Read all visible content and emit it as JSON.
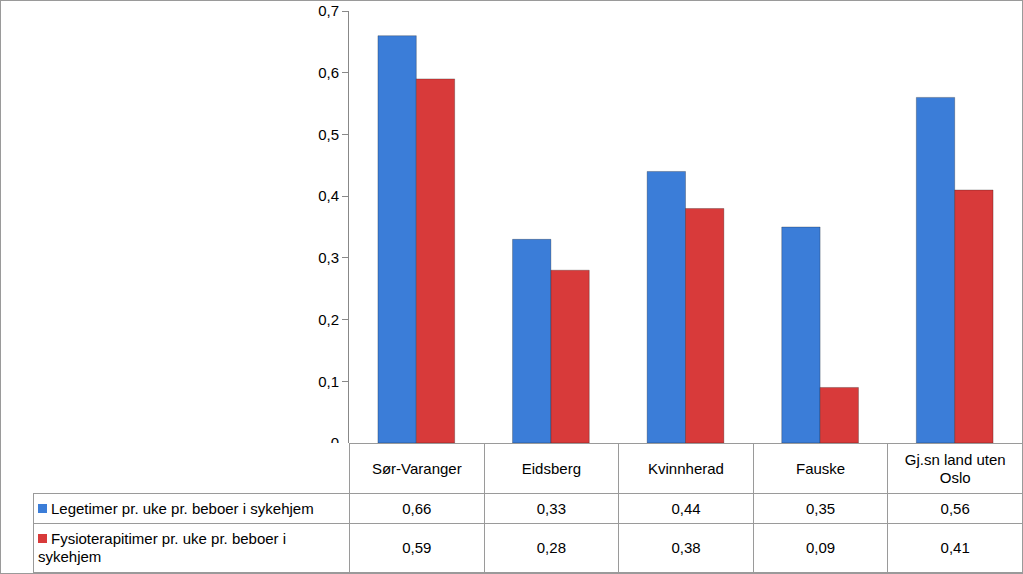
{
  "chart_data": {
    "type": "bar",
    "categories": [
      "Sør-Varanger",
      "Eidsberg",
      "Kvinnherad",
      "Fauske",
      "Gj.sn land uten Oslo"
    ],
    "series": [
      {
        "name": "Legetimer pr. uke pr. beboer i sykehjem",
        "color": "#3b7dd8",
        "values": [
          0.66,
          0.33,
          0.44,
          0.35,
          0.56
        ],
        "value_labels": [
          "0,66",
          "0,33",
          "0,44",
          "0,35",
          "0,56"
        ]
      },
      {
        "name": "Fysioterapitimer pr. uke pr. beboer i sykehjem",
        "color": "#d83a3a",
        "values": [
          0.59,
          0.28,
          0.38,
          0.09,
          0.41
        ],
        "value_labels": [
          "0,59",
          "0,28",
          "0,38",
          "0,09",
          "0,41"
        ]
      }
    ],
    "ylim": [
      0,
      0.7
    ],
    "yticks": [
      0,
      {
        "value": 0.1,
        "label": "0,1"
      },
      {
        "value": 0.2,
        "label": "0,2"
      },
      {
        "value": 0.3,
        "label": "0,3"
      },
      {
        "value": 0.4,
        "label": "0,4"
      },
      {
        "value": 0.5,
        "label": "0,5"
      },
      {
        "value": 0.6,
        "label": "0,6"
      },
      {
        "value": 0.7,
        "label": "0,7"
      }
    ],
    "grid": false,
    "tick_labels": "y"
  }
}
